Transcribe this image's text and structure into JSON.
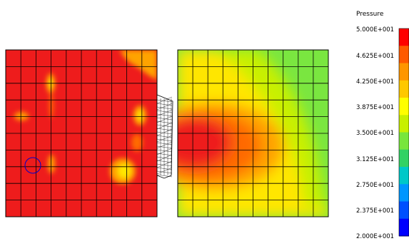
{
  "legend": {
    "title": "Pressure",
    "labels": [
      "5.000E+001",
      "4.625E+001",
      "4.250E+001",
      "3.875E+001",
      "3.500E+001",
      "3.125E+001",
      "2.750E+001",
      "2.375E+001",
      "2.000E+001"
    ],
    "colors": [
      "#ff0000",
      "#ff5a00",
      "#ff9600",
      "#ffc800",
      "#ffff00",
      "#c8f000",
      "#78e63c",
      "#32d264",
      "#00c8c8",
      "#0096ff",
      "#0050ff",
      "#0000ff"
    ]
  },
  "palette": {
    "red": "#ee1c1c",
    "orange": "#ff6a00",
    "amber": "#ffa300",
    "yellow": "#ffe600",
    "yellowgreen": "#c8f000",
    "green": "#7ae640",
    "grid": "#000000",
    "spot_marker": "#0000cc"
  },
  "panels": [
    {
      "name": "left-domain",
      "cols": 10,
      "rows": 10
    },
    {
      "name": "right-domain",
      "cols": 10,
      "rows": 10
    }
  ]
}
